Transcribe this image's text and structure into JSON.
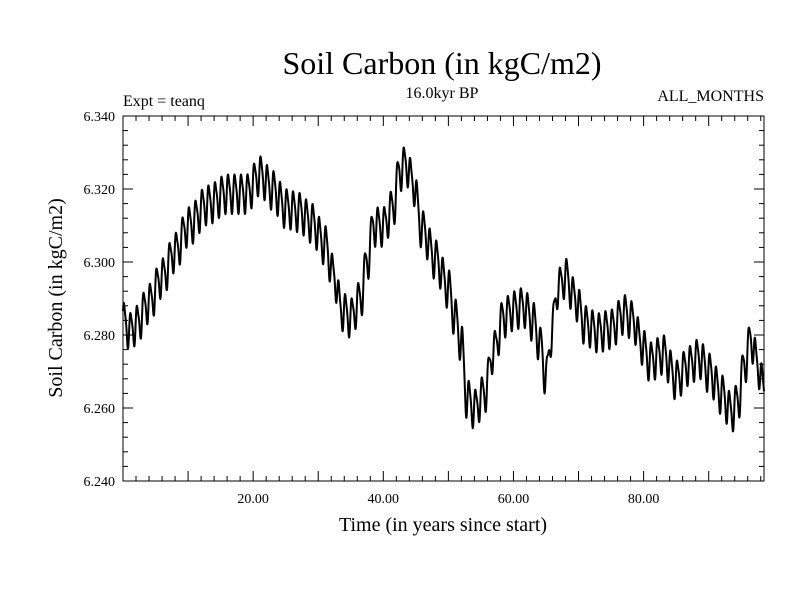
{
  "chart_data": {
    "type": "line",
    "title": "Soil Carbon (in kgC/m2)",
    "subtitle": "16.0kyr BP",
    "left_note": "Expt = teanq",
    "right_note": "ALL_MONTHS",
    "xlabel": "Time (in years since start)",
    "ylabel": "Soil Carbon (in kgC/m2)",
    "xlim": [
      0,
      98.5
    ],
    "ylim": [
      6.24,
      6.34
    ],
    "x_ticks": [
      {
        "value": 20,
        "label": "20.00"
      },
      {
        "value": 40,
        "label": "40.00"
      },
      {
        "value": 60,
        "label": "60.00"
      },
      {
        "value": 80,
        "label": "80.00"
      }
    ],
    "y_ticks": [
      {
        "value": 6.24,
        "label": "6.240"
      },
      {
        "value": 6.26,
        "label": "6.260"
      },
      {
        "value": 6.28,
        "label": "6.280"
      },
      {
        "value": 6.3,
        "label": "6.300"
      },
      {
        "value": 6.32,
        "label": "6.320"
      },
      {
        "value": 6.34,
        "label": "6.340"
      }
    ],
    "series": [
      {
        "name": "Soil Carbon",
        "seasonal_amplitude": 0.005,
        "x": [
          0,
          0.5,
          1,
          2,
          4,
          6,
          8,
          10,
          13,
          16,
          19,
          21,
          23,
          25,
          27,
          29,
          31,
          32.5,
          33.5,
          35,
          36.5,
          37.5,
          38.5,
          40,
          41.5,
          42.5,
          43.5,
          44.5,
          46,
          48,
          50,
          51,
          52,
          52.8,
          54,
          55.5,
          57,
          58.5,
          60,
          61.5,
          63,
          64.2,
          65,
          65.8,
          66.8,
          68,
          69.5,
          71,
          73,
          75,
          77,
          78.5,
          79.5,
          81,
          83,
          85,
          87,
          88.5,
          90,
          92,
          93.5,
          94.5,
          95.5,
          96.5,
          97.5,
          98.5
        ],
        "y": [
          6.284,
          6.283,
          6.281,
          6.283,
          6.289,
          6.296,
          6.303,
          6.31,
          6.316,
          6.319,
          6.319,
          6.324,
          6.32,
          6.315,
          6.314,
          6.311,
          6.305,
          6.296,
          6.287,
          6.285,
          6.29,
          6.3,
          6.31,
          6.31,
          6.315,
          6.325,
          6.327,
          6.322,
          6.309,
          6.301,
          6.293,
          6.285,
          6.278,
          6.263,
          6.26,
          6.264,
          6.276,
          6.285,
          6.287,
          6.288,
          6.284,
          6.277,
          6.268,
          6.28,
          6.293,
          6.296,
          6.29,
          6.283,
          6.281,
          6.282,
          6.286,
          6.284,
          6.278,
          6.273,
          6.275,
          6.268,
          6.272,
          6.274,
          6.27,
          6.264,
          6.259,
          6.262,
          6.272,
          6.279,
          6.272,
          6.265
        ]
      }
    ]
  }
}
